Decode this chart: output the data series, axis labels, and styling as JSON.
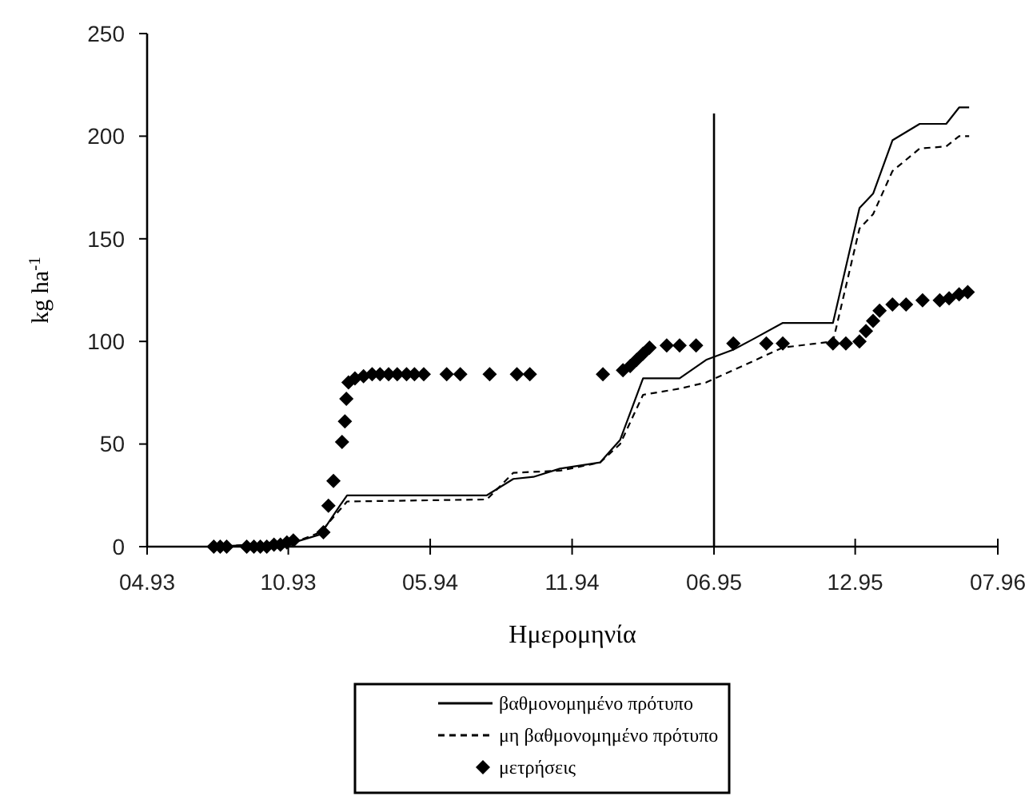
{
  "chart_data": {
    "type": "line",
    "xlabel": "Ημερομηνία",
    "ylabel": "kg ha$^{-1}$",
    "xlim": [
      "1993-04-01",
      "1996-07-01"
    ],
    "xticks": [
      {
        "value": "1993-04-01",
        "label": "04.93"
      },
      {
        "value": "1993-10-15",
        "label": "10.93"
      },
      {
        "value": "1994-05-01",
        "label": "05.94"
      },
      {
        "value": "1994-11-15",
        "label": "11.94"
      },
      {
        "value": "1995-06-01",
        "label": "06.95"
      },
      {
        "value": "1995-12-15",
        "label": "12.95"
      },
      {
        "value": "1996-07-01",
        "label": "07.96"
      }
    ],
    "ylim": [
      0,
      250
    ],
    "yticks": [
      0,
      50,
      100,
      150,
      200,
      250
    ],
    "grid": false,
    "legend": "bottom",
    "ref_lines": [
      {
        "axis": "x",
        "value": "1995-06-01",
        "color": "#000000"
      }
    ],
    "series": [
      {
        "name": "βαθμονομημένο πρότυπο",
        "color": "#000000",
        "line_style": "solid",
        "marker": "none",
        "x": [
          "1993-07-03",
          "1993-10-22",
          "1993-11-29",
          "1993-12-26",
          "1994-01-05",
          "1994-07-19",
          "1994-08-25",
          "1994-09-22",
          "1994-10-29",
          "1994-12-24",
          "1995-01-21",
          "1995-02-22",
          "1995-04-14",
          "1995-05-21",
          "1995-06-28",
          "1995-07-25",
          "1995-09-05",
          "1995-11-14",
          "1995-12-21",
          "1996-01-09",
          "1996-02-05",
          "1996-03-14",
          "1996-04-20",
          "1996-05-08",
          "1996-05-22"
        ],
        "values": [
          0,
          2,
          6,
          20,
          25,
          25,
          33,
          34,
          38,
          41,
          52,
          82,
          82,
          91,
          96,
          101,
          109,
          109,
          165,
          172,
          198,
          206,
          206,
          214,
          214
        ]
      },
      {
        "name": "μη βαθμονομημένο πρότυπο",
        "color": "#000000",
        "line_style": "dashed",
        "marker": "none",
        "x": [
          "1993-07-03",
          "1993-10-22",
          "1993-11-29",
          "1993-12-26",
          "1994-01-05",
          "1994-07-19",
          "1994-08-25",
          "1994-10-29",
          "1994-12-24",
          "1995-01-21",
          "1995-02-22",
          "1995-04-14",
          "1995-05-21",
          "1995-06-28",
          "1995-09-05",
          "1995-11-14",
          "1995-12-21",
          "1996-01-09",
          "1996-02-05",
          "1996-03-14",
          "1996-04-20",
          "1996-05-08",
          "1996-05-22"
        ],
        "values": [
          0,
          2,
          7,
          18,
          22,
          23,
          36,
          37,
          41,
          50,
          74,
          77,
          80,
          86,
          97,
          100,
          155,
          162,
          183,
          194,
          195,
          200,
          200
        ]
      },
      {
        "name": "μετρήσεις",
        "type": "scatter",
        "color": "#000000",
        "marker": "diamond",
        "x": [
          "1993-07-03",
          "1993-07-12",
          "1993-07-21",
          "1993-08-18",
          "1993-08-28",
          "1993-09-06",
          "1993-09-15",
          "1993-09-25",
          "1993-10-04",
          "1993-10-13",
          "1993-10-22",
          "1993-12-03",
          "1993-12-10",
          "1993-12-17",
          "1993-12-29",
          "1994-01-02",
          "1994-01-04",
          "1994-01-07",
          "1994-01-16",
          "1994-01-28",
          "1994-02-09",
          "1994-02-20",
          "1994-03-04",
          "1994-03-16",
          "1994-03-29",
          "1994-04-09",
          "1994-04-22",
          "1994-05-24",
          "1994-06-12",
          "1994-07-23",
          "1994-08-30",
          "1994-09-17",
          "1994-12-28",
          "1995-01-25",
          "1995-02-04",
          "1995-02-13",
          "1995-02-22",
          "1995-03-03",
          "1995-03-27",
          "1995-04-14",
          "1995-05-07",
          "1995-06-28",
          "1995-08-13",
          "1995-09-05",
          "1995-11-14",
          "1995-12-02",
          "1995-12-21",
          "1995-12-30",
          "1996-01-09",
          "1996-01-18",
          "1996-02-05",
          "1996-02-24",
          "1996-03-18",
          "1996-04-11",
          "1996-04-24",
          "1996-05-08",
          "1996-05-20"
        ],
        "values": [
          0,
          0,
          0,
          0,
          0,
          0,
          0,
          1,
          1,
          2,
          3,
          7,
          20,
          32,
          51,
          61,
          72,
          80,
          82,
          83,
          84,
          84,
          84,
          84,
          84,
          84,
          84,
          84,
          84,
          84,
          84,
          84,
          84,
          86,
          88,
          91,
          94,
          97,
          98,
          98,
          98,
          99,
          99,
          99,
          99,
          99,
          100,
          105,
          110,
          115,
          118,
          118,
          120,
          120,
          121,
          123,
          124
        ]
      }
    ]
  }
}
